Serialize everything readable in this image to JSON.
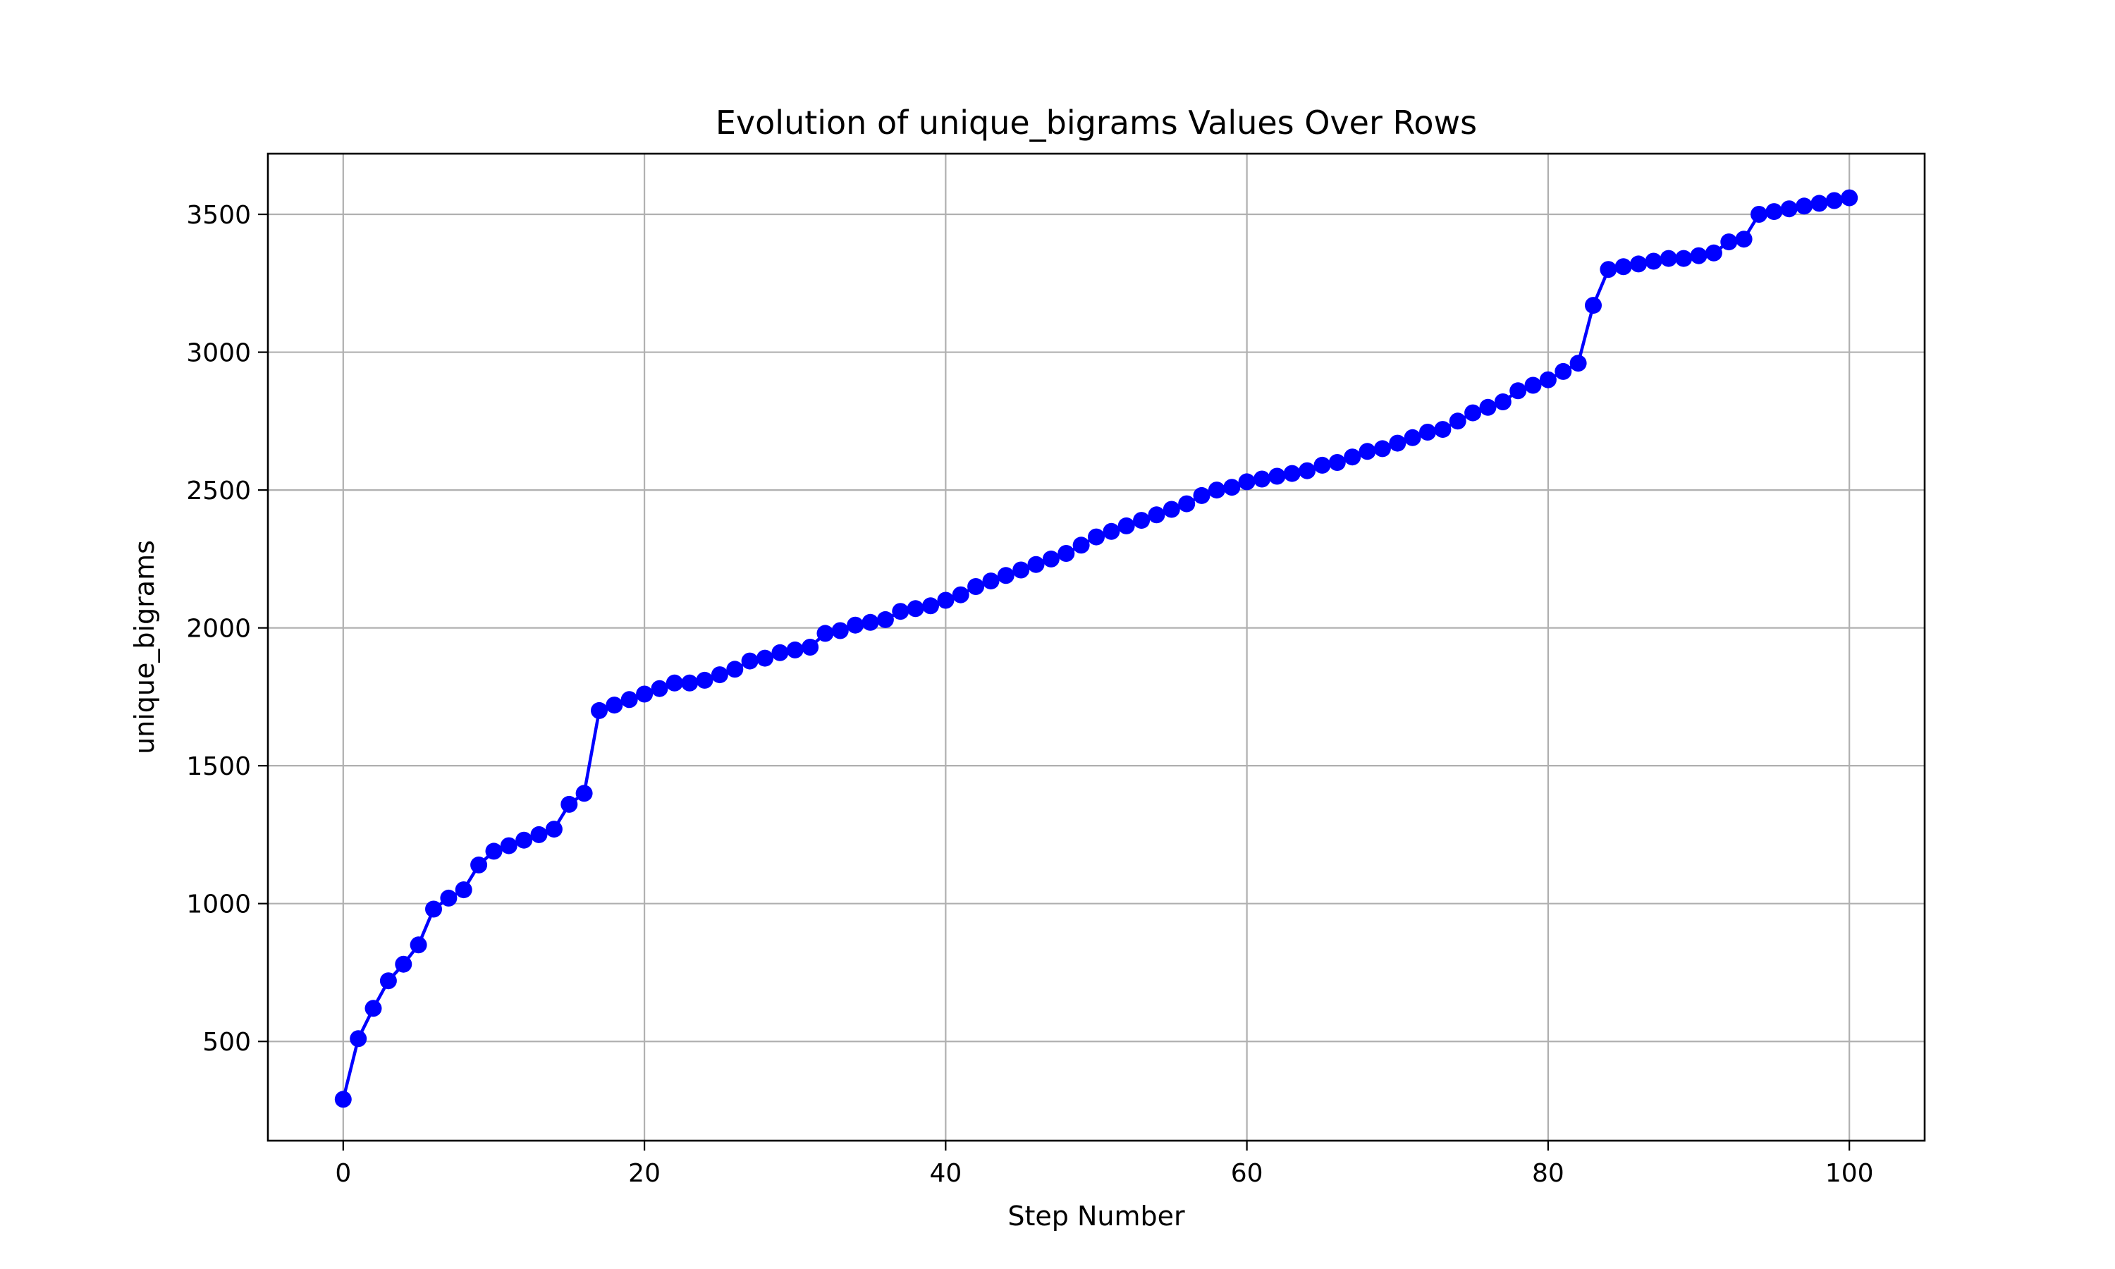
{
  "chart_data": {
    "type": "line",
    "title": "Evolution of unique_bigrams Values Over Rows",
    "xlabel": "Step Number",
    "ylabel": "unique_bigrams",
    "xlim": [
      -5,
      105
    ],
    "ylim": [
      140,
      3720
    ],
    "xticks": [
      0,
      20,
      40,
      60,
      80,
      100
    ],
    "yticks": [
      500,
      1000,
      1500,
      2000,
      2500,
      3000,
      3500
    ],
    "grid": true,
    "marker": "circle",
    "colors": {
      "line": "#0000ff"
    },
    "series": [
      {
        "x": [
          0,
          1,
          2,
          3,
          4,
          5,
          6,
          7,
          8,
          9,
          10,
          11,
          12,
          13,
          14,
          15,
          16,
          17,
          18,
          19,
          20,
          21,
          22,
          23,
          24,
          25,
          26,
          27,
          28,
          29,
          30,
          31,
          32,
          33,
          34,
          35,
          36,
          37,
          38,
          39,
          40,
          41,
          42,
          43,
          44,
          45,
          46,
          47,
          48,
          49,
          50,
          51,
          52,
          53,
          54,
          55,
          56,
          57,
          58,
          59,
          60,
          61,
          62,
          63,
          64,
          65,
          66,
          67,
          68,
          69,
          70,
          71,
          72,
          73,
          74,
          75,
          76,
          77,
          78,
          79,
          80,
          81,
          82,
          83,
          84,
          85,
          86,
          87,
          88,
          89,
          90,
          91,
          92,
          93,
          94,
          95,
          96,
          97,
          98,
          99,
          100
        ],
        "y": [
          290,
          510,
          620,
          720,
          780,
          850,
          980,
          1020,
          1050,
          1140,
          1190,
          1210,
          1230,
          1250,
          1270,
          1360,
          1400,
          1700,
          1720,
          1740,
          1760,
          1780,
          1800,
          1800,
          1810,
          1830,
          1850,
          1880,
          1890,
          1910,
          1920,
          1930,
          1980,
          1990,
          2010,
          2020,
          2030,
          2060,
          2070,
          2080,
          2100,
          2120,
          2150,
          2170,
          2190,
          2210,
          2230,
          2250,
          2270,
          2300,
          2330,
          2350,
          2370,
          2390,
          2410,
          2430,
          2450,
          2480,
          2500,
          2510,
          2530,
          2540,
          2550,
          2560,
          2570,
          2590,
          2600,
          2620,
          2640,
          2650,
          2670,
          2690,
          2710,
          2720,
          2750,
          2780,
          2800,
          2820,
          2860,
          2880,
          2900,
          2930,
          2960,
          3170,
          3300,
          3310,
          3320,
          3330,
          3340,
          3340,
          3350,
          3360,
          3400,
          3410,
          3500,
          3510,
          3520,
          3530,
          3540,
          3550,
          3560
        ]
      }
    ]
  }
}
